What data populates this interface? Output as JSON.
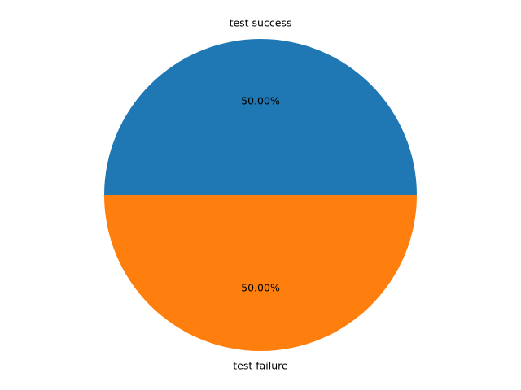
{
  "chart_data": {
    "type": "pie",
    "slices": [
      {
        "label": "test success",
        "value": 50.0,
        "pct_label": "50.00%",
        "color": "#1f77b4"
      },
      {
        "label": "test failure",
        "value": 50.0,
        "pct_label": "50.00%",
        "color": "#ff7f0e"
      }
    ],
    "start_angle_deg": 0,
    "direction": "counterclockwise",
    "title": ""
  }
}
